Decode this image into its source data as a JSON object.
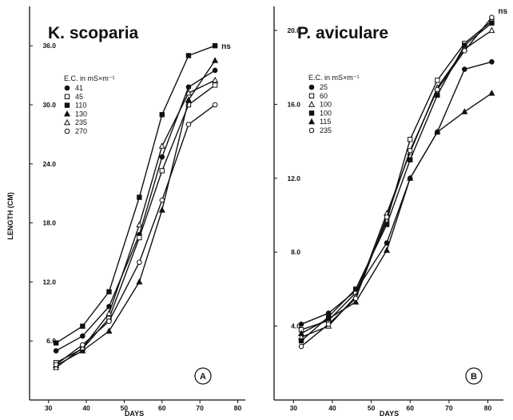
{
  "chart_data": [
    {
      "type": "line",
      "panel": "A",
      "title": "K. scoparia",
      "xlabel": "DAYS",
      "ylabel": "LENGTH (CM)",
      "xlim": [
        25,
        82
      ],
      "ylim": [
        0,
        40
      ],
      "xticks": [
        30,
        40,
        50,
        60,
        70,
        80
      ],
      "yticks": [
        6.0,
        12.0,
        18.0,
        24.0,
        30.0,
        36.0
      ],
      "ytick_labels": [
        "6.0",
        "12.0",
        "18.0",
        "24.0",
        "30.0",
        "36.0"
      ],
      "legend_title": "E.C. in mS×m⁻¹",
      "annotation": "ns",
      "series": [
        {
          "name": "41",
          "marker": "filled-circle",
          "x": [
            32,
            39,
            46,
            54,
            60,
            67,
            74
          ],
          "y": [
            5.0,
            6.5,
            9.5,
            16.8,
            24.7,
            31.8,
            33.5
          ]
        },
        {
          "name": "45",
          "marker": "open-square",
          "x": [
            32,
            39,
            46,
            54,
            60,
            67,
            74
          ],
          "y": [
            3.8,
            5.2,
            8.3,
            16.5,
            23.3,
            30.0,
            32.0
          ]
        },
        {
          "name": "110",
          "marker": "filled-square",
          "x": [
            32,
            39,
            46,
            54,
            60,
            67,
            74
          ],
          "y": [
            5.8,
            7.5,
            11.0,
            20.6,
            29.0,
            35.0,
            36.0
          ]
        },
        {
          "name": "130",
          "marker": "filled-triangle",
          "x": [
            32,
            39,
            46,
            54,
            60,
            67,
            74
          ],
          "y": [
            3.5,
            5.0,
            7.0,
            12.0,
            19.3,
            30.5,
            34.5
          ]
        },
        {
          "name": "235",
          "marker": "open-triangle",
          "x": [
            32,
            39,
            46,
            54,
            60,
            67,
            74
          ],
          "y": [
            3.3,
            5.3,
            8.8,
            17.8,
            25.8,
            31.2,
            32.5
          ]
        },
        {
          "name": "270",
          "marker": "open-circle",
          "x": [
            32,
            39,
            46,
            54,
            60,
            67,
            74
          ],
          "y": [
            3.6,
            5.6,
            8.0,
            14.0,
            20.3,
            28.0,
            30.0
          ]
        }
      ]
    },
    {
      "type": "line",
      "panel": "B",
      "title": "P. aviculare",
      "xlabel": "DAYS",
      "ylabel": "",
      "xlim": [
        25,
        84
      ],
      "ylim": [
        0,
        21.3
      ],
      "xticks": [
        30,
        40,
        50,
        60,
        70,
        80
      ],
      "yticks": [
        4.0,
        8.0,
        12.0,
        16.0,
        20.0
      ],
      "ytick_labels": [
        "4.0",
        "8.0",
        "12.0",
        "16.0",
        "20.0"
      ],
      "legend_title": "E.C. in mS×m⁻¹",
      "annotation": "ns",
      "series": [
        {
          "name": "25",
          "marker": "filled-circle",
          "x": [
            32,
            39,
            46,
            54,
            60,
            67,
            74,
            81
          ],
          "y": [
            4.1,
            4.7,
            5.9,
            8.5,
            12.0,
            14.5,
            17.9,
            18.3
          ]
        },
        {
          "name": "60",
          "marker": "open-square",
          "x": [
            32,
            39,
            46,
            54,
            60,
            67,
            74,
            81
          ],
          "y": [
            3.8,
            4.3,
            5.8,
            9.7,
            14.1,
            17.3,
            19.3,
            20.5
          ]
        },
        {
          "name": "100",
          "marker": "open-triangle",
          "x": [
            32,
            39,
            46,
            54,
            60,
            67,
            74,
            81
          ],
          "y": [
            3.4,
            4.0,
            5.6,
            10.1,
            13.4,
            16.9,
            19.0,
            20.0
          ]
        },
        {
          "name": "100",
          "marker": "filled-square",
          "x": [
            32,
            39,
            46,
            54,
            60,
            67,
            74,
            81
          ],
          "y": [
            3.2,
            4.5,
            6.0,
            9.5,
            13.0,
            16.5,
            19.2,
            20.4
          ]
        },
        {
          "name": "115",
          "marker": "filled-triangle",
          "x": [
            32,
            39,
            46,
            54,
            60,
            67,
            74,
            81
          ],
          "y": [
            3.6,
            4.4,
            5.3,
            8.1,
            12.0,
            14.5,
            15.6,
            16.6
          ]
        },
        {
          "name": "235",
          "marker": "open-circle",
          "x": [
            32,
            39,
            46,
            54,
            60,
            67,
            74,
            81
          ],
          "y": [
            2.9,
            4.1,
            5.5,
            9.9,
            13.5,
            16.8,
            18.9,
            20.7
          ]
        }
      ]
    }
  ]
}
